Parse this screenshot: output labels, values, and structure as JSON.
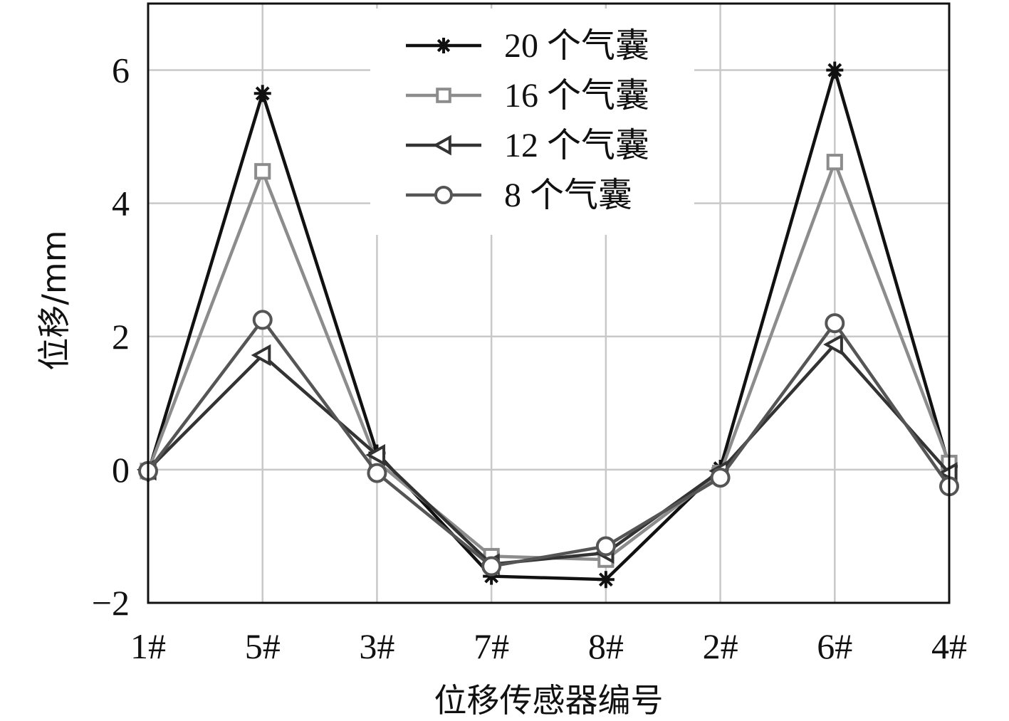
{
  "chart_data": {
    "type": "line",
    "title": "",
    "xlabel": "位移传感器编号",
    "ylabel": "位移/mm",
    "categories": [
      "1#",
      "5#",
      "3#",
      "7#",
      "8#",
      "2#",
      "6#",
      "4#"
    ],
    "ylim": [
      -2,
      7
    ],
    "yticks": [
      -2,
      0,
      2,
      4,
      6
    ],
    "ytick_labels": [
      "−2",
      "0",
      "2",
      "4",
      "6"
    ],
    "grid": true,
    "legend_position": "top-center",
    "series": [
      {
        "name": "20 个气囊",
        "marker": "asterisk",
        "color": "#111111",
        "values": [
          -0.05,
          5.65,
          0.25,
          -1.6,
          -1.65,
          0.02,
          6.0,
          0.05
        ]
      },
      {
        "name": "16 个气囊",
        "marker": "square",
        "color": "#8c8c8c",
        "values": [
          -0.02,
          4.48,
          0.12,
          -1.3,
          -1.35,
          -0.05,
          4.62,
          0.1
        ]
      },
      {
        "name": "12 个气囊",
        "marker": "triangle-left",
        "color": "#333333",
        "values": [
          0.0,
          1.72,
          0.22,
          -1.42,
          -1.25,
          -0.02,
          1.88,
          -0.05
        ]
      },
      {
        "name": "8 个气囊",
        "marker": "circle",
        "color": "#555555",
        "values": [
          -0.02,
          2.25,
          -0.05,
          -1.45,
          -1.15,
          -0.12,
          2.2,
          -0.25
        ]
      }
    ]
  }
}
